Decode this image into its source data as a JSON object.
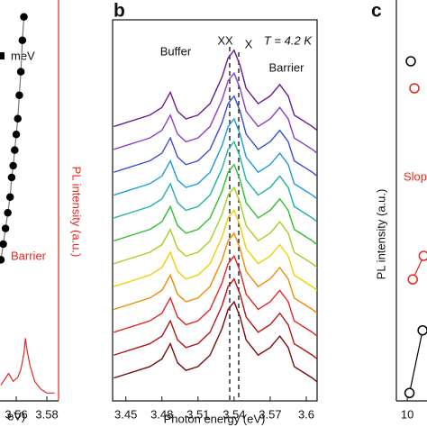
{
  "chart_data": [
    {
      "type": "line",
      "xlabel": "eV)",
      "annotations": [
        "meV",
        "Barrier"
      ],
      "ylabel_right": "PL intensity (a.u.)",
      "xlim": [
        3.5494,
        3.5876
      ],
      "xticks": [
        3.56,
        3.58
      ],
      "ylim": [
        0,
        100
      ],
      "series": [
        {
          "color": "#000000",
          "marker": true,
          "x": [
            3.55,
            3.5515,
            3.553,
            3.5545,
            3.556,
            3.557,
            3.558,
            3.559,
            3.56,
            3.561,
            3.562,
            3.563,
            3.564,
            3.565
          ],
          "values": [
            36,
            40,
            44,
            48,
            52,
            57,
            60,
            64,
            68,
            72,
            78,
            84,
            92,
            98
          ]
        },
        {
          "color": "#e8251f",
          "marker": false,
          "x": [
            3.55,
            3.555,
            3.558,
            3.561,
            3.563,
            3.565,
            3.566,
            3.567,
            3.569,
            3.572,
            3.576,
            3.58,
            3.585
          ],
          "values": [
            4,
            7,
            5,
            6,
            8,
            12,
            16,
            13,
            9,
            5,
            3,
            2,
            2
          ]
        }
      ]
    },
    {
      "type": "line",
      "panel_label": "b",
      "xlabel": "Photon energy (eV)",
      "annotations": [
        "Buffer",
        "XX",
        "X",
        "T = 4.2 K",
        "Barrier"
      ],
      "xlim": [
        3.439,
        3.609
      ],
      "xticks": [
        3.45,
        3.48,
        3.51,
        3.54,
        3.57,
        3.6
      ],
      "ylim": [
        0,
        100
      ],
      "x": [
        3.44,
        3.45,
        3.46,
        3.47,
        3.48,
        3.487,
        3.493,
        3.5,
        3.51,
        3.52,
        3.53,
        3.535,
        3.54,
        3.545,
        3.55,
        3.56,
        3.57,
        3.578,
        3.585,
        3.59,
        3.6,
        3.605,
        3.609
      ],
      "series": [
        {
          "color": "#6a1b8a",
          "values": [
            72,
            73,
            74,
            75,
            77,
            81,
            76,
            74,
            75,
            78,
            85,
            90,
            92,
            88,
            82,
            78,
            80,
            83,
            80,
            75,
            73,
            72,
            71
          ]
        },
        {
          "color": "#8a3fc4",
          "values": [
            66,
            67,
            68,
            69,
            71,
            75,
            70,
            68,
            69,
            72,
            79,
            84,
            86,
            82,
            76,
            72,
            74,
            77,
            74,
            69,
            67,
            66,
            65
          ]
        },
        {
          "color": "#3a4fd0",
          "values": [
            60,
            61,
            62,
            63,
            65,
            69,
            64,
            62,
            63,
            66,
            73,
            78,
            80,
            76,
            70,
            66,
            68,
            71,
            68,
            63,
            61,
            60,
            59
          ]
        },
        {
          "color": "#1e9be0",
          "values": [
            54,
            55,
            56,
            57,
            59,
            63,
            58,
            56,
            57,
            60,
            67,
            72,
            74,
            70,
            64,
            60,
            62,
            65,
            62,
            57,
            55,
            54,
            53
          ]
        },
        {
          "color": "#1fb3a6",
          "values": [
            48,
            49,
            50,
            51,
            53,
            57,
            52,
            50,
            51,
            54,
            61,
            66,
            68,
            64,
            58,
            54,
            56,
            59,
            56,
            51,
            49,
            48,
            47
          ]
        },
        {
          "color": "#2fbf2f",
          "values": [
            42,
            43,
            44,
            45,
            47,
            51,
            46,
            44,
            45,
            48,
            55,
            60,
            62,
            58,
            52,
            48,
            50,
            53,
            50,
            45,
            43,
            42,
            41
          ]
        },
        {
          "color": "#a3d11f",
          "values": [
            36,
            37,
            38,
            39,
            41,
            45,
            40,
            38,
            39,
            42,
            49,
            54,
            56,
            52,
            46,
            42,
            44,
            47,
            44,
            39,
            37,
            36,
            35
          ]
        },
        {
          "color": "#f0d000",
          "values": [
            30,
            31,
            32,
            33,
            35,
            39,
            34,
            32,
            33,
            36,
            43,
            48,
            50,
            46,
            40,
            36,
            38,
            41,
            38,
            33,
            31,
            30,
            29
          ]
        },
        {
          "color": "#f28a00",
          "values": [
            24,
            25,
            26,
            27,
            29,
            33,
            28,
            26,
            27,
            30,
            37,
            42,
            44,
            40,
            34,
            30,
            32,
            35,
            32,
            27,
            25,
            24,
            23
          ]
        },
        {
          "color": "#e5251f",
          "values": [
            18,
            19,
            20,
            21,
            23,
            27,
            22,
            20,
            21,
            24,
            31,
            36,
            38,
            34,
            28,
            24,
            26,
            29,
            26,
            21,
            19,
            18,
            17
          ]
        },
        {
          "color": "#b51515",
          "values": [
            12,
            13,
            14,
            15,
            17,
            21,
            16,
            14,
            15,
            18,
            25,
            30,
            32,
            28,
            22,
            18,
            20,
            23,
            20,
            15,
            13,
            12,
            11
          ]
        },
        {
          "color": "#7d0a0a",
          "values": [
            6,
            7,
            8,
            9,
            11,
            15,
            10,
            8,
            9,
            12,
            19,
            24,
            26,
            22,
            16,
            12,
            14,
            17,
            14,
            9,
            7,
            6,
            5
          ]
        }
      ]
    },
    {
      "type": "line",
      "panel_label": "c",
      "ylabel": "PL intensity (a.u.)",
      "annotations": [
        "Slop"
      ],
      "xlim": [
        9.0,
        11.8
      ],
      "xticks": [
        10
      ],
      "ylim": [
        0,
        100
      ],
      "series": [
        {
          "color": "#000000",
          "marker": true,
          "x": [
            10.2,
            11.4
          ],
          "values": [
            2,
            18
          ]
        },
        {
          "color": "#e8251f",
          "marker": true,
          "x": [
            10.5,
            11.5
          ],
          "values": [
            31,
            37
          ]
        }
      ]
    }
  ]
}
